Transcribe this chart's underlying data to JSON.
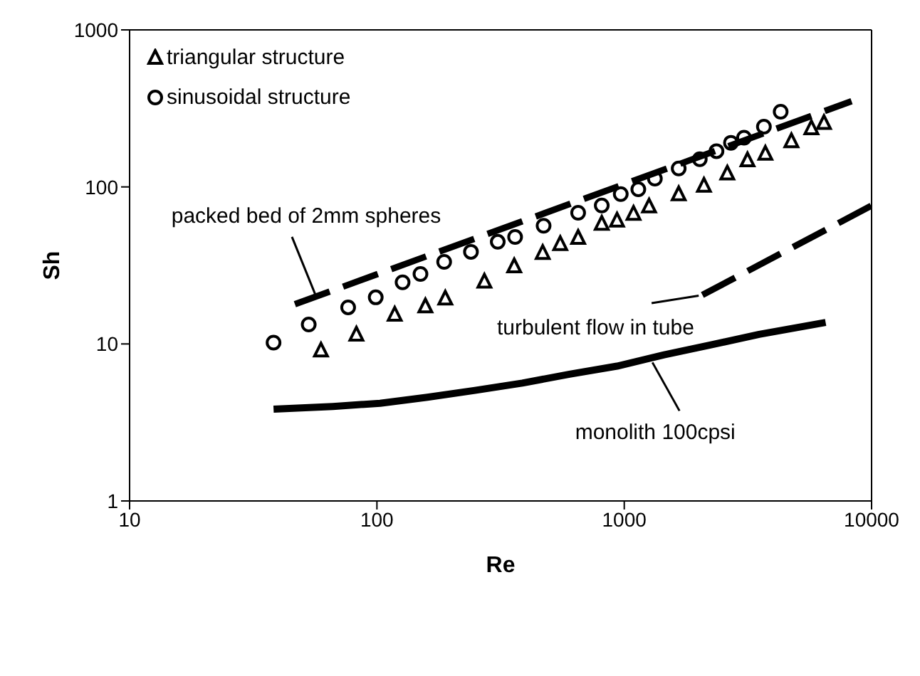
{
  "chart_data": {
    "type": "scatter",
    "xlabel": "Re",
    "ylabel": "Sh",
    "log": "xy",
    "legend": "top left",
    "xlim": [
      10,
      10000
    ],
    "xticks": [
      10,
      100,
      1000,
      10000
    ],
    "ylim": [
      1,
      1000
    ],
    "yticks": [
      1,
      10,
      100,
      1000
    ],
    "series": [
      {
        "name": "triangular structure",
        "marker": "triangle",
        "color": "#000000",
        "x": [
          59.4,
          82.6,
          118,
          157,
          189,
          272,
          359,
          468,
          551,
          651,
          811,
          935,
          1090,
          1260,
          1660,
          2100,
          2610,
          3150,
          3720,
          4740,
          5710,
          6420
        ],
        "values": [
          9.1,
          11.5,
          15.4,
          17.4,
          19.5,
          25,
          31.3,
          38.1,
          43.4,
          47.5,
          58.4,
          61.2,
          67.6,
          75.3,
          90,
          102,
          122,
          148,
          163,
          196,
          237,
          256
        ]
      },
      {
        "name": "sinusoidal structure",
        "marker": "circle",
        "color": "#000000",
        "x": [
          38.2,
          53,
          76.5,
          98.9,
          127,
          150,
          187,
          240,
          308,
          362,
          472,
          651,
          811,
          968,
          1140,
          1330,
          1660,
          2020,
          2360,
          2700,
          3050,
          3670,
          4290
        ],
        "values": [
          10.2,
          13.3,
          17.1,
          19.8,
          24.7,
          27.9,
          33.3,
          38.6,
          44.7,
          48,
          56.6,
          68.4,
          76.2,
          90,
          96.6,
          113,
          131,
          150,
          169,
          191,
          206,
          242,
          301
        ]
      },
      {
        "type": "line",
        "marker": "none",
        "line_style": "dashed",
        "color": "#000000",
        "x": [
          46.6,
          8300
        ],
        "values": [
          17.9,
          351
        ]
      },
      {
        "type": "line",
        "marker": "none",
        "line_style": "solid",
        "color": "#000000",
        "x": [
          1290,
          2000
        ],
        "values": [
          18.2,
          20.3
        ]
      },
      {
        "type": "line",
        "marker": "none",
        "line_style": "dashed",
        "color": "#000000",
        "x": [
          2070,
          10000
        ],
        "values": [
          20.5,
          76
        ]
      },
      {
        "type": "line",
        "marker": "none",
        "line_style": "solid",
        "color": "#000000",
        "x": [
          38.2,
          66.4,
          103,
          160,
          249,
          387,
          601,
          935,
          1450,
          2260,
          3510,
          6520
        ],
        "values": [
          3.84,
          4.0,
          4.19,
          4.58,
          5.06,
          5.63,
          6.42,
          7.22,
          8.53,
          9.9,
          11.5,
          13.7
        ]
      }
    ],
    "annotations": [
      {
        "text": "packed bed of 2mm spheres",
        "x": 56.8,
        "y": 20.0
      },
      {
        "text": "turbulent flow in tube",
        "x": 2070,
        "y": 20.5
      },
      {
        "text": "monolith 100cpsi",
        "x": 1300,
        "y": 7.62
      }
    ]
  }
}
